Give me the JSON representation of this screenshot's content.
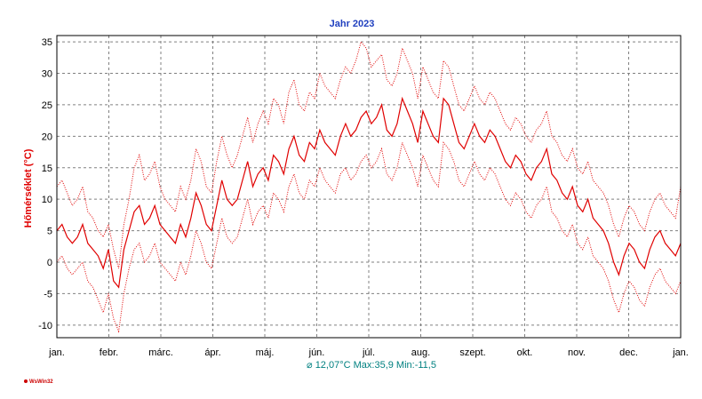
{
  "chart_data": {
    "type": "line",
    "title": "Jahr 2023",
    "ylabel": "Hőmérséklet  (°C)",
    "xlabel": "",
    "x_ticks": [
      "jan.",
      "febr.",
      "márc.",
      "ápr.",
      "máj.",
      "jún.",
      "júl.",
      "aug.",
      "szept.",
      "okt.",
      "nov.",
      "dec.",
      "jan."
    ],
    "ylim": [
      -12,
      36
    ],
    "y_ticks": [
      35,
      30,
      25,
      20,
      15,
      10,
      5,
      0,
      -5,
      -10
    ],
    "grid": true,
    "stats_text": "⌀ 12,07°C  Max:35,9  Min:-11,5",
    "series": [
      {
        "style": "solid",
        "color": "#e00000",
        "values": [
          5,
          6,
          4,
          3,
          4,
          6,
          3,
          2,
          1,
          -1,
          2,
          -3,
          -4,
          2,
          5,
          8,
          9,
          6,
          7,
          9,
          6,
          5,
          4,
          3,
          6,
          4,
          7,
          11,
          9,
          6,
          5,
          9,
          13,
          10,
          9,
          10,
          13,
          16,
          12,
          14,
          15,
          13,
          17,
          16,
          14,
          18,
          20,
          17,
          16,
          19,
          18,
          21,
          19,
          18,
          17,
          20,
          22,
          20,
          21,
          23,
          24,
          22,
          23,
          25,
          21,
          20,
          22,
          26,
          24,
          22,
          19,
          24,
          22,
          20,
          19,
          26,
          25,
          22,
          19,
          18,
          20,
          22,
          20,
          19,
          21,
          20,
          18,
          16,
          15,
          17,
          16,
          14,
          13,
          15,
          16,
          18,
          14,
          13,
          11,
          10,
          12,
          9,
          8,
          10,
          7,
          6,
          5,
          3,
          0,
          -2,
          1,
          3,
          2,
          0,
          -1,
          2,
          4,
          5,
          3,
          2,
          1,
          3
        ]
      },
      {
        "style": "dotted",
        "color": "#e00000",
        "values": [
          12,
          13,
          11,
          9,
          10,
          12,
          8,
          7,
          5,
          4,
          6,
          2,
          -1,
          6,
          10,
          15,
          17,
          13,
          14,
          16,
          12,
          10,
          9,
          8,
          12,
          10,
          13,
          18,
          16,
          12,
          11,
          16,
          20,
          17,
          15,
          17,
          20,
          23,
          19,
          22,
          24,
          22,
          26,
          25,
          22,
          27,
          29,
          25,
          24,
          27,
          26,
          30,
          28,
          27,
          26,
          29,
          31,
          30,
          32,
          35,
          34,
          31,
          32,
          33,
          29,
          28,
          30,
          34,
          32,
          30,
          26,
          31,
          29,
          27,
          26,
          32,
          31,
          28,
          25,
          24,
          26,
          28,
          26,
          25,
          27,
          26,
          24,
          22,
          21,
          23,
          22,
          20,
          19,
          21,
          22,
          24,
          20,
          19,
          17,
          16,
          18,
          15,
          14,
          16,
          13,
          12,
          11,
          9,
          6,
          4,
          7,
          9,
          8,
          6,
          5,
          8,
          10,
          11,
          9,
          8,
          7,
          12
        ]
      },
      {
        "style": "dotted",
        "color": "#e00000",
        "values": [
          0,
          1,
          -1,
          -2,
          -1,
          0,
          -3,
          -4,
          -6,
          -8,
          -5,
          -9,
          -11,
          -5,
          -1,
          2,
          3,
          0,
          1,
          3,
          0,
          -1,
          -2,
          -3,
          0,
          -2,
          1,
          5,
          3,
          0,
          -1,
          3,
          7,
          4,
          3,
          4,
          7,
          10,
          6,
          8,
          9,
          7,
          11,
          10,
          8,
          12,
          14,
          11,
          10,
          13,
          12,
          15,
          13,
          12,
          11,
          14,
          15,
          13,
          14,
          16,
          17,
          15,
          16,
          18,
          14,
          13,
          15,
          19,
          17,
          15,
          12,
          17,
          15,
          13,
          12,
          19,
          18,
          16,
          13,
          12,
          14,
          16,
          14,
          13,
          15,
          14,
          12,
          10,
          9,
          11,
          10,
          8,
          7,
          9,
          10,
          12,
          8,
          7,
          5,
          4,
          6,
          3,
          2,
          4,
          1,
          0,
          -1,
          -3,
          -6,
          -8,
          -5,
          -3,
          -4,
          -6,
          -7,
          -4,
          -2,
          -1,
          -3,
          -4,
          -5,
          -3
        ]
      }
    ]
  },
  "logo_text": "WsWin32"
}
